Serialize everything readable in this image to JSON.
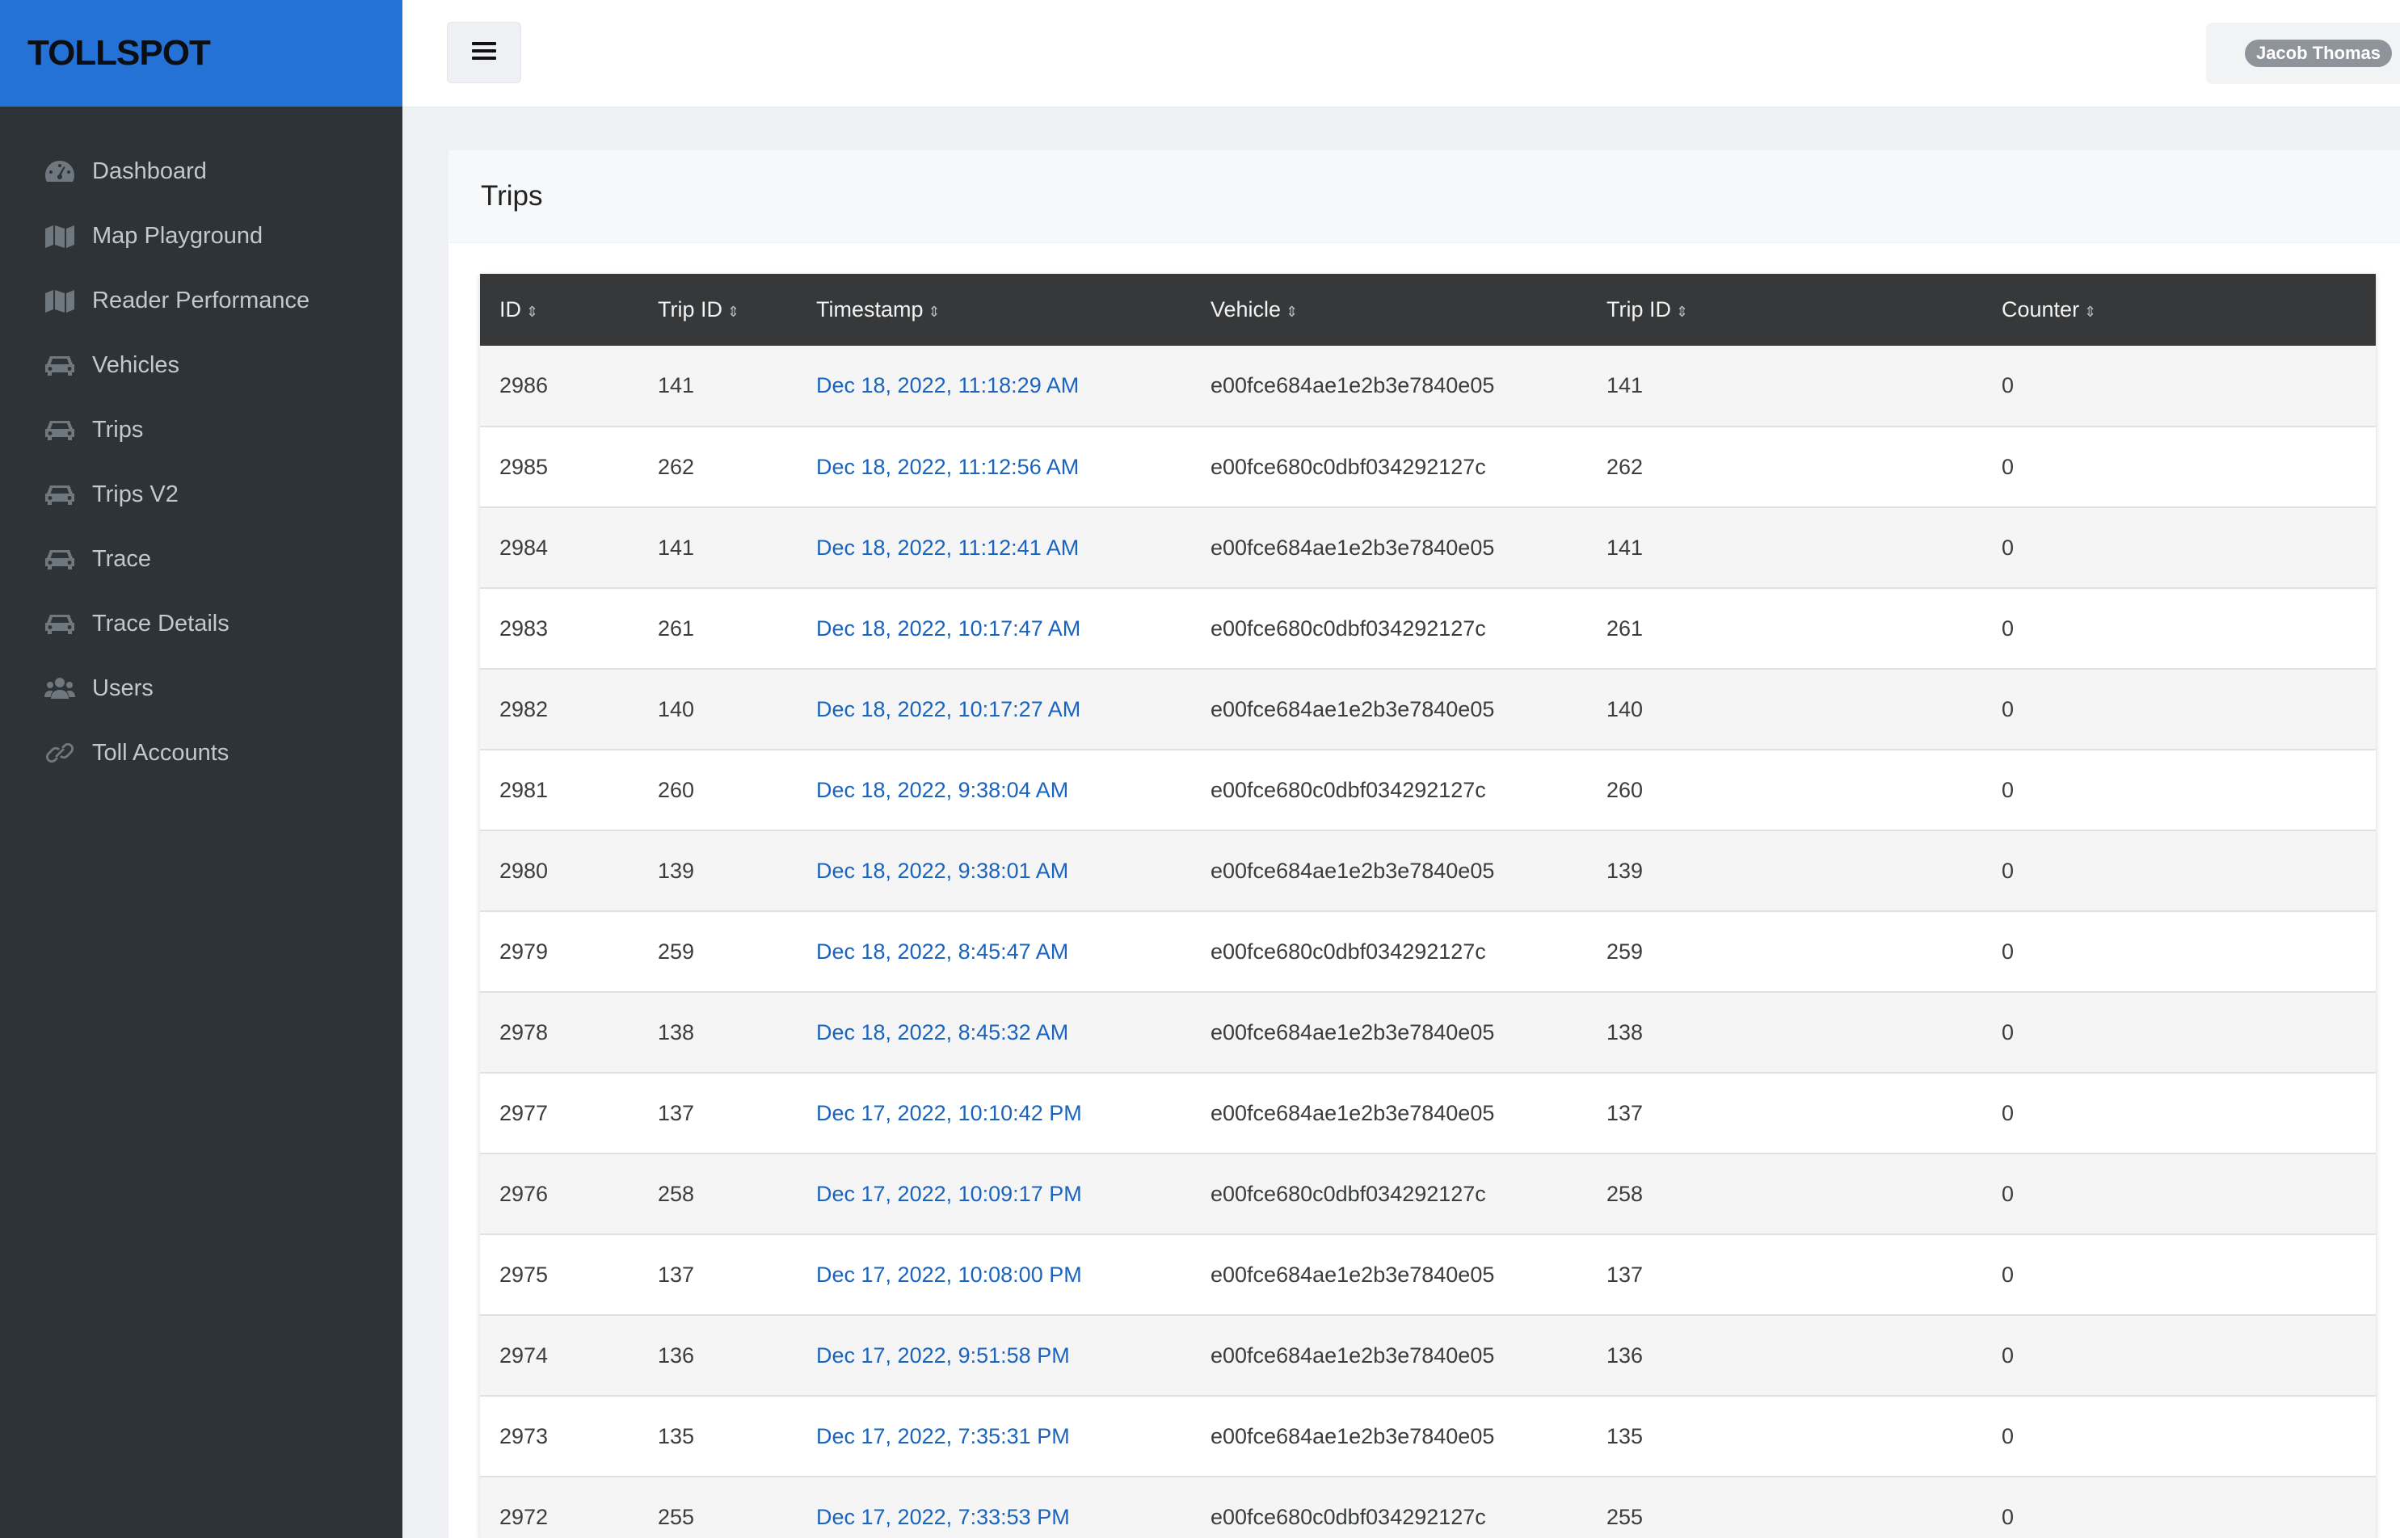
{
  "brand": {
    "name": "TOLLSPOT"
  },
  "sidebar": {
    "items": [
      {
        "label": "Dashboard",
        "icon": "tachometer-icon"
      },
      {
        "label": "Map Playground",
        "icon": "map-icon"
      },
      {
        "label": "Reader Performance",
        "icon": "map-icon"
      },
      {
        "label": "Vehicles",
        "icon": "car-icon"
      },
      {
        "label": "Trips",
        "icon": "car-icon"
      },
      {
        "label": "Trips V2",
        "icon": "car-icon"
      },
      {
        "label": "Trace",
        "icon": "car-icon"
      },
      {
        "label": "Trace Details",
        "icon": "car-icon"
      },
      {
        "label": "Users",
        "icon": "users-icon"
      },
      {
        "label": "Toll Accounts",
        "icon": "link-icon"
      }
    ]
  },
  "topbar": {
    "menu_icon": "hamburger-icon",
    "user_name": "Jacob Thomas"
  },
  "page": {
    "title": "Trips"
  },
  "table": {
    "columns": [
      "ID",
      "Trip ID",
      "Timestamp",
      "Vehicle",
      "Trip ID",
      "Counter"
    ],
    "rows": [
      [
        "2986",
        "141",
        "Dec 18, 2022, 11:18:29 AM",
        "e00fce684ae1e2b3e7840e05",
        "141",
        "0"
      ],
      [
        "2985",
        "262",
        "Dec 18, 2022, 11:12:56 AM",
        "e00fce680c0dbf034292127c",
        "262",
        "0"
      ],
      [
        "2984",
        "141",
        "Dec 18, 2022, 11:12:41 AM",
        "e00fce684ae1e2b3e7840e05",
        "141",
        "0"
      ],
      [
        "2983",
        "261",
        "Dec 18, 2022, 10:17:47 AM",
        "e00fce680c0dbf034292127c",
        "261",
        "0"
      ],
      [
        "2982",
        "140",
        "Dec 18, 2022, 10:17:27 AM",
        "e00fce684ae1e2b3e7840e05",
        "140",
        "0"
      ],
      [
        "2981",
        "260",
        "Dec 18, 2022, 9:38:04 AM",
        "e00fce680c0dbf034292127c",
        "260",
        "0"
      ],
      [
        "2980",
        "139",
        "Dec 18, 2022, 9:38:01 AM",
        "e00fce684ae1e2b3e7840e05",
        "139",
        "0"
      ],
      [
        "2979",
        "259",
        "Dec 18, 2022, 8:45:47 AM",
        "e00fce680c0dbf034292127c",
        "259",
        "0"
      ],
      [
        "2978",
        "138",
        "Dec 18, 2022, 8:45:32 AM",
        "e00fce684ae1e2b3e7840e05",
        "138",
        "0"
      ],
      [
        "2977",
        "137",
        "Dec 17, 2022, 10:10:42 PM",
        "e00fce684ae1e2b3e7840e05",
        "137",
        "0"
      ],
      [
        "2976",
        "258",
        "Dec 17, 2022, 10:09:17 PM",
        "e00fce680c0dbf034292127c",
        "258",
        "0"
      ],
      [
        "2975",
        "137",
        "Dec 17, 2022, 10:08:00 PM",
        "e00fce684ae1e2b3e7840e05",
        "137",
        "0"
      ],
      [
        "2974",
        "136",
        "Dec 17, 2022, 9:51:58 PM",
        "e00fce684ae1e2b3e7840e05",
        "136",
        "0"
      ],
      [
        "2973",
        "135",
        "Dec 17, 2022, 7:35:31 PM",
        "e00fce684ae1e2b3e7840e05",
        "135",
        "0"
      ],
      [
        "2972",
        "255",
        "Dec 17, 2022, 7:33:53 PM",
        "e00fce680c0dbf034292127c",
        "255",
        "0"
      ]
    ]
  },
  "colors": {
    "brand_bar": "#2472d6",
    "sidebar_bg": "#2e3338",
    "table_header_bg": "#363839",
    "link": "#1a64bf"
  }
}
